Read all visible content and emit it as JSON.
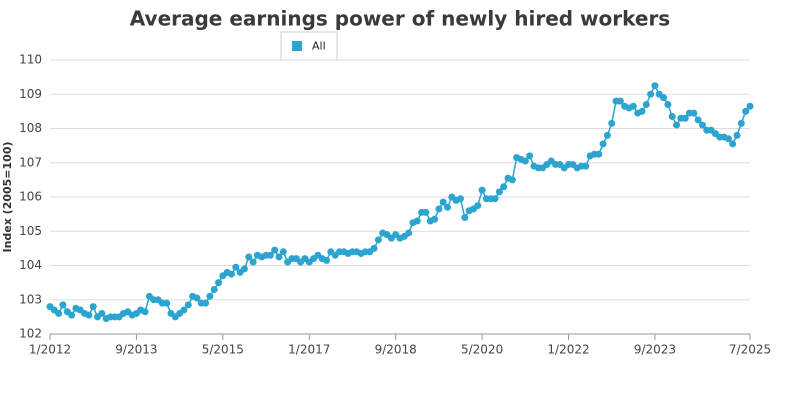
{
  "chart_data": {
    "type": "line",
    "title": "Average earnings power of newly hired workers",
    "y_label": "Index (2005=100)",
    "categories": [
      "1/2012",
      null,
      null,
      null,
      null,
      null,
      null,
      null,
      null,
      null,
      null,
      null,
      null,
      null,
      null,
      null,
      null,
      null,
      null,
      null,
      "9/2013",
      null,
      null,
      null,
      null,
      null,
      null,
      null,
      null,
      null,
      null,
      null,
      null,
      null,
      null,
      null,
      null,
      null,
      null,
      null,
      "5/2015",
      null,
      null,
      null,
      null,
      null,
      null,
      null,
      null,
      null,
      null,
      null,
      null,
      null,
      null,
      null,
      null,
      null,
      null,
      null,
      "1/2017",
      null,
      null,
      null,
      null,
      null,
      null,
      null,
      null,
      null,
      null,
      null,
      null,
      null,
      null,
      null,
      null,
      null,
      null,
      null,
      "9/2018",
      null,
      null,
      null,
      null,
      null,
      null,
      null,
      null,
      null,
      null,
      null,
      null,
      null,
      null,
      null,
      null,
      null,
      null,
      null,
      "5/2020",
      null,
      null,
      null,
      null,
      null,
      null,
      null,
      null,
      null,
      null,
      null,
      null,
      null,
      null,
      null,
      null,
      null,
      null,
      null,
      "1/2022",
      null,
      null,
      null,
      null,
      null,
      null,
      null,
      null,
      null,
      null,
      null,
      null,
      null,
      null,
      null,
      null,
      null,
      null,
      null,
      "9/2023",
      null,
      null,
      null,
      null,
      null,
      null,
      null,
      null,
      null,
      null,
      null,
      null,
      null,
      null,
      null,
      null,
      null,
      null,
      null,
      null,
      null,
      "7/2025"
    ],
    "series": [
      {
        "name": "All",
        "color": "#2ba4d0",
        "values": [
          102.8,
          102.7,
          102.6,
          102.85,
          102.65,
          102.55,
          102.75,
          102.7,
          102.6,
          102.55,
          102.8,
          102.5,
          102.6,
          102.45,
          102.5,
          102.5,
          102.5,
          102.6,
          102.65,
          102.55,
          102.6,
          102.7,
          102.65,
          103.1,
          103.0,
          103.0,
          102.9,
          102.9,
          102.6,
          102.5,
          102.6,
          102.7,
          102.85,
          103.1,
          103.05,
          102.9,
          102.9,
          103.1,
          103.3,
          103.5,
          103.7,
          103.8,
          103.75,
          103.95,
          103.8,
          103.9,
          104.25,
          104.1,
          104.3,
          104.25,
          104.3,
          104.3,
          104.45,
          104.25,
          104.4,
          104.1,
          104.2,
          104.2,
          104.1,
          104.2,
          104.1,
          104.2,
          104.3,
          104.2,
          104.15,
          104.4,
          104.3,
          104.4,
          104.4,
          104.35,
          104.4,
          104.4,
          104.35,
          104.4,
          104.4,
          104.5,
          104.75,
          104.95,
          104.9,
          104.8,
          104.9,
          104.8,
          104.85,
          104.95,
          105.25,
          105.3,
          105.55,
          105.55,
          105.3,
          105.35,
          105.65,
          105.85,
          105.7,
          106.0,
          105.9,
          105.95,
          105.4,
          105.6,
          105.65,
          105.75,
          106.2,
          105.95,
          105.95,
          105.95,
          106.15,
          106.3,
          106.55,
          106.5,
          107.15,
          107.1,
          107.05,
          107.2,
          106.9,
          106.85,
          106.85,
          106.95,
          107.05,
          106.95,
          106.95,
          106.85,
          106.95,
          106.95,
          106.85,
          106.9,
          106.9,
          107.2,
          107.25,
          107.25,
          107.55,
          107.8,
          108.15,
          108.8,
          108.8,
          108.65,
          108.6,
          108.65,
          108.45,
          108.5,
          108.7,
          109.0,
          109.25,
          109.0,
          108.9,
          108.7,
          108.35,
          108.1,
          108.3,
          108.3,
          108.45,
          108.45,
          108.25,
          108.1,
          107.95,
          107.95,
          107.85,
          107.75,
          107.75,
          107.7,
          107.55,
          107.8,
          108.15,
          108.5,
          108.65
        ]
      }
    ],
    "ylim": [
      102,
      110
    ],
    "yticks": [
      102,
      103,
      104,
      105,
      106,
      107,
      108,
      109,
      110
    ],
    "grid": true,
    "legend": "top"
  }
}
